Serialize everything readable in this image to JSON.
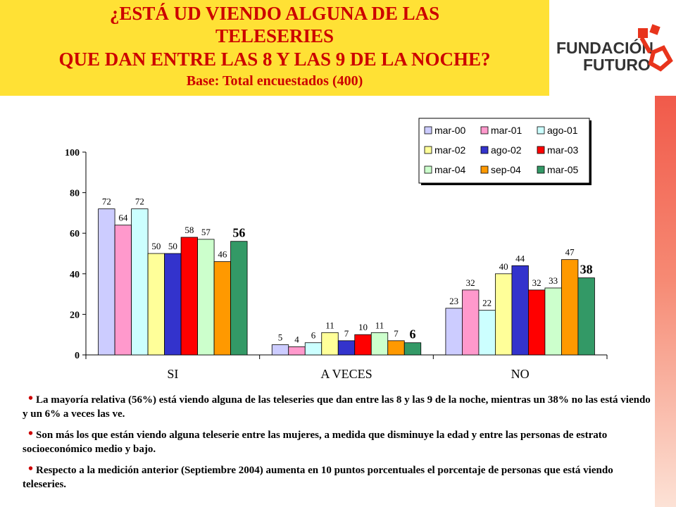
{
  "header": {
    "line1": "¿ESTÁ UD VIENDO ALGUNA DE LAS",
    "line2": "TELESERIES",
    "line3": "QUE DAN ENTRE LAS 8 Y LAS 9 DE LA NOCHE?",
    "base": "Base: Total encuestados (400)"
  },
  "logo": {
    "line1": "FUNDACIÓN",
    "line2": "FUTURO"
  },
  "colors": {
    "title_bg": "#FFE135",
    "title_text": "#CC0000",
    "accent": "#CC0000"
  },
  "chart_data": {
    "type": "bar",
    "categories": [
      "SI",
      "A VECES",
      "NO"
    ],
    "ylim": [
      0,
      100
    ],
    "yticks": [
      "0",
      "20",
      "40",
      "60",
      "80",
      "100"
    ],
    "grid": false,
    "legend_position": "top-right",
    "series": [
      {
        "name": "mar-00",
        "color": "#CCCCFF",
        "values": [
          72,
          5,
          23
        ]
      },
      {
        "name": "mar-01",
        "color": "#FF99CC",
        "values": [
          64,
          4,
          32
        ]
      },
      {
        "name": "ago-01",
        "color": "#CCFFFF",
        "values": [
          72,
          6,
          22
        ]
      },
      {
        "name": "mar-02",
        "color": "#FFFF99",
        "values": [
          50,
          11,
          40
        ]
      },
      {
        "name": "ago-02",
        "color": "#3333CC",
        "values": [
          50,
          7,
          44
        ]
      },
      {
        "name": "mar-03",
        "color": "#FF0000",
        "values": [
          58,
          10,
          32
        ]
      },
      {
        "name": "mar-04",
        "color": "#CCFFCC",
        "values": [
          57,
          11,
          33
        ]
      },
      {
        "name": "sep-04",
        "color": "#FF9900",
        "values": [
          46,
          7,
          47
        ]
      },
      {
        "name": "mar-05",
        "color": "#339966",
        "values": [
          56,
          6,
          38
        ]
      }
    ]
  },
  "notes": [
    "La mayoría relativa (56%) está viendo alguna de las teleseries que dan entre las 8 y las 9 de la noche, mientras un 38% no las está viendo y un 6% a veces las ve.",
    "Son más los que están viendo alguna teleserie entre las mujeres, a medida que disminuye la edad y entre las personas de estrato socioeconómico medio y bajo.",
    "Respecto a la medición anterior (Septiembre 2004) aumenta en 10 puntos porcentuales el porcentaje de personas que está viendo teleseries."
  ]
}
